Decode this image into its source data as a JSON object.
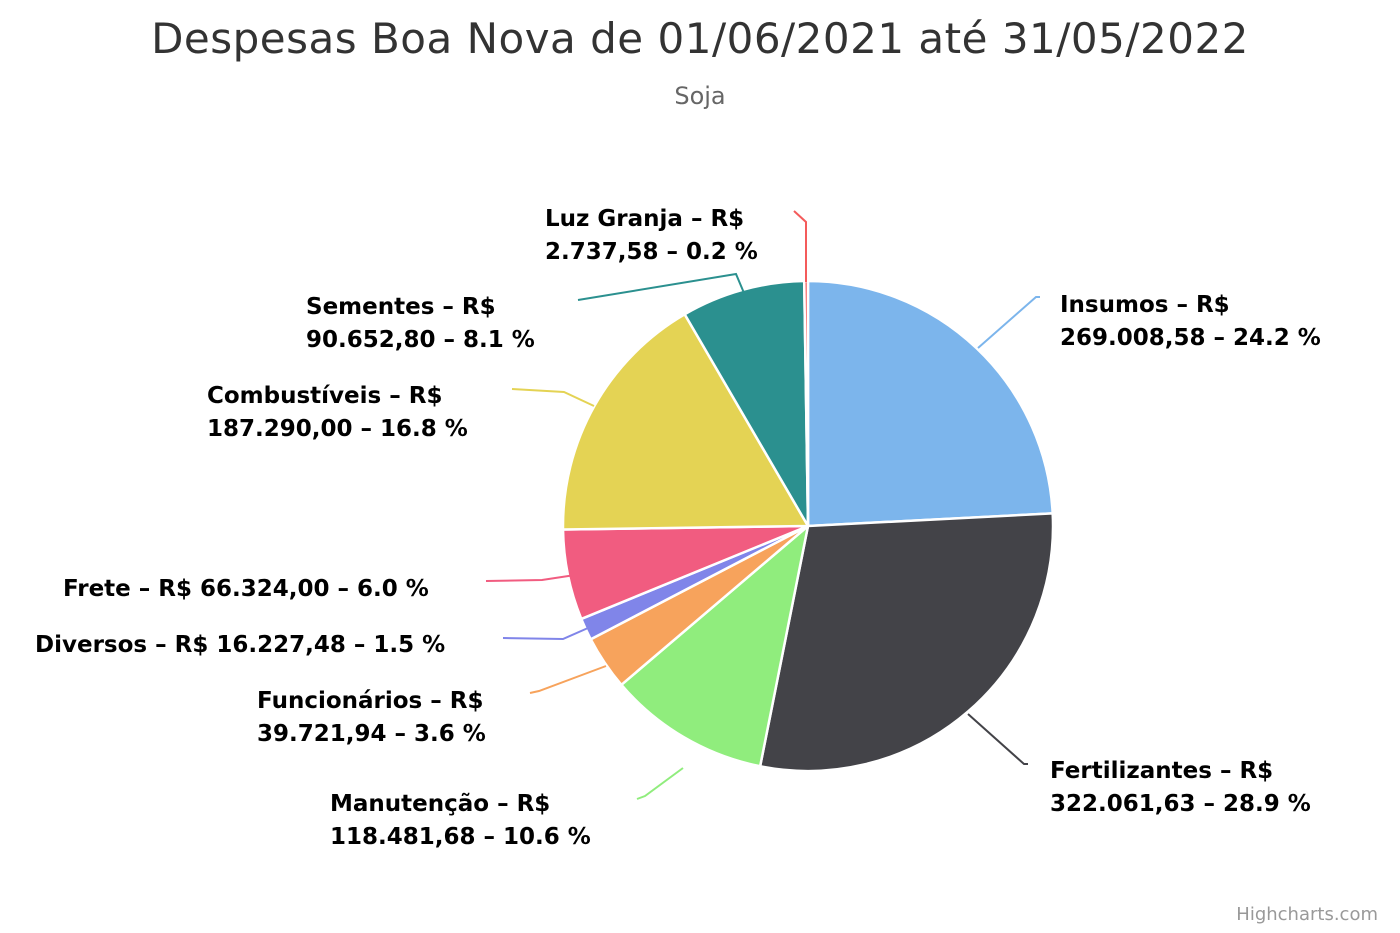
{
  "title": "Despesas Boa Nova de 01/06/2021 até 31/05/2022",
  "subtitle": "Soja",
  "credits": "Highcharts.com",
  "chart_data": {
    "type": "pie",
    "title": "Despesas Boa Nova de 01/06/2021 até 31/05/2022",
    "subtitle": "Soja",
    "series": [
      {
        "name": "",
        "data": [
          {
            "name": "Insumos",
            "value": 269008.58,
            "value_label": "269.008,58",
            "percent": 24.2,
            "color": "#7cb5ec"
          },
          {
            "name": "Fertilizantes",
            "value": 322061.63,
            "value_label": "322.061,63",
            "percent": 28.9,
            "color": "#434348"
          },
          {
            "name": "Manutenção",
            "value": 118481.68,
            "value_label": "118.481,68",
            "percent": 10.6,
            "color": "#90ed7d"
          },
          {
            "name": "Funcionários",
            "value": 39721.94,
            "value_label": "39.721,94",
            "percent": 3.6,
            "color": "#f7a35c"
          },
          {
            "name": "Diversos",
            "value": 16227.48,
            "value_label": "16.227,48",
            "percent": 1.5,
            "color": "#8085e9"
          },
          {
            "name": "Frete",
            "value": 66324.0,
            "value_label": "66.324,00",
            "percent": 6.0,
            "color": "#f15c80"
          },
          {
            "name": "Combustíveis",
            "value": 187290.0,
            "value_label": "187.290,00",
            "percent": 16.8,
            "color": "#e4d354"
          },
          {
            "name": "Sementes",
            "value": 90652.8,
            "value_label": "90.652,80",
            "percent": 8.1,
            "color": "#2b908f"
          },
          {
            "name": "Luz Granja",
            "value": 2737.58,
            "value_label": "2.737,58",
            "percent": 0.2,
            "color": "#f45b5b"
          }
        ]
      }
    ],
    "labels": [
      [
        "Insumos – R$",
        "269.008,58 – 24.2 %"
      ],
      [
        "Fertilizantes – R$",
        "322.061,63 – 28.9 %"
      ],
      [
        "Manutenção – R$",
        "118.481,68 – 10.6 %"
      ],
      [
        "Funcionários – R$",
        "39.721,94 – 3.6 %"
      ],
      [
        "Diversos – R$ 16.227,48 – 1.5 %"
      ],
      [
        "Frete – R$ 66.324,00 – 6.0 %"
      ],
      [
        "Combustíveis – R$",
        "187.290,00 – 16.8 %"
      ],
      [
        "Sementes – R$",
        "90.652,80 – 8.1 %"
      ],
      [
        "Luz Granja – R$",
        "2.737,58 – 0.2 %"
      ]
    ],
    "legend": "none"
  }
}
